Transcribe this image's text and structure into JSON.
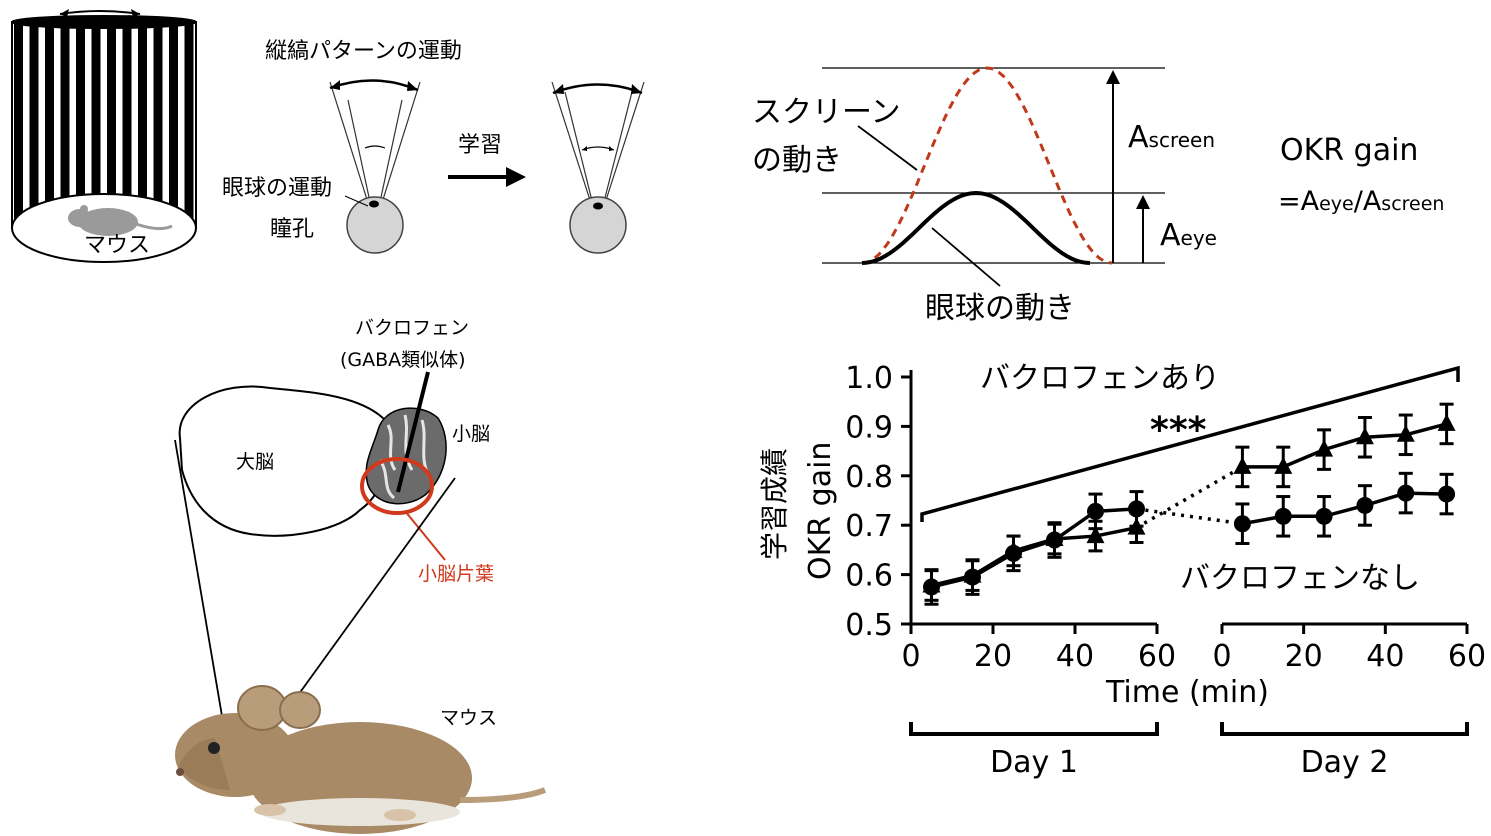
{
  "panel_a": {
    "stripe_caption": "縦縞パターンの運動",
    "mouse_label": "マウス",
    "eye_movement_label": "眼球の運動",
    "pupil_label": "瞳孔",
    "learning_label": "学習"
  },
  "panel_b": {
    "screen_motion_line1": "スクリーン",
    "screen_motion_line2": "の動き",
    "eye_motion_label": "眼球の動き",
    "a_screen_main": "A",
    "a_screen_sub": "screen",
    "a_eye_main": "A",
    "a_eye_sub": "eye",
    "formula_title": "OKR gain",
    "formula_prefix": "=A",
    "formula_eye_sub": "eye",
    "formula_slash": "/A",
    "formula_screen_sub": "screen",
    "colors": {
      "screen_curve": "#c0391b",
      "eye_curve": "#000000"
    }
  },
  "panel_c": {
    "baclofen_label": "バクロフェン",
    "baclofen_sub": "(GABA類似体)",
    "cerebrum_label": "大脳",
    "cerebellum_label": "小脳",
    "flocculus_label": "小脳片葉",
    "mouse_label": "マウス",
    "colors": {
      "flocculus": "#d0391c",
      "mouse_fur": "#a88a66"
    }
  },
  "chart_data": {
    "type": "line",
    "ylabel": "OKR gain",
    "ylabel_jp": "学習成績",
    "xlabel": "Time (min)",
    "ylim": [
      0.5,
      1.0
    ],
    "yticks": [
      "0.5",
      "0.6",
      "0.7",
      "0.8",
      "0.9",
      "1.0"
    ],
    "day1_xticks": [
      "0",
      "20",
      "40",
      "60"
    ],
    "day2_xticks": [
      "0",
      "20",
      "40",
      "60"
    ],
    "day_labels": [
      "Day 1",
      "Day 2"
    ],
    "annotation_with": "バクロフェンあり",
    "annotation_without": "バクロフェンなし",
    "significance": "***",
    "series": [
      {
        "marker": "triangle",
        "day1": {
          "x": [
            5,
            15,
            25,
            35,
            45,
            55
          ],
          "y": [
            0.578,
            0.598,
            0.648,
            0.672,
            0.678,
            0.695
          ],
          "err": 0.03
        },
        "day2": {
          "x": [
            5,
            15,
            25,
            35,
            45,
            55
          ],
          "y": [
            0.818,
            0.818,
            0.853,
            0.878,
            0.883,
            0.905
          ],
          "err": 0.04
        }
      },
      {
        "marker": "circle",
        "day1": {
          "x": [
            5,
            15,
            25,
            35,
            45,
            55
          ],
          "y": [
            0.575,
            0.595,
            0.643,
            0.67,
            0.728,
            0.733
          ],
          "err": 0.035
        },
        "day2": {
          "x": [
            5,
            15,
            25,
            35,
            45,
            55
          ],
          "y": [
            0.703,
            0.718,
            0.718,
            0.74,
            0.765,
            0.763
          ],
          "err": 0.04
        }
      }
    ]
  }
}
